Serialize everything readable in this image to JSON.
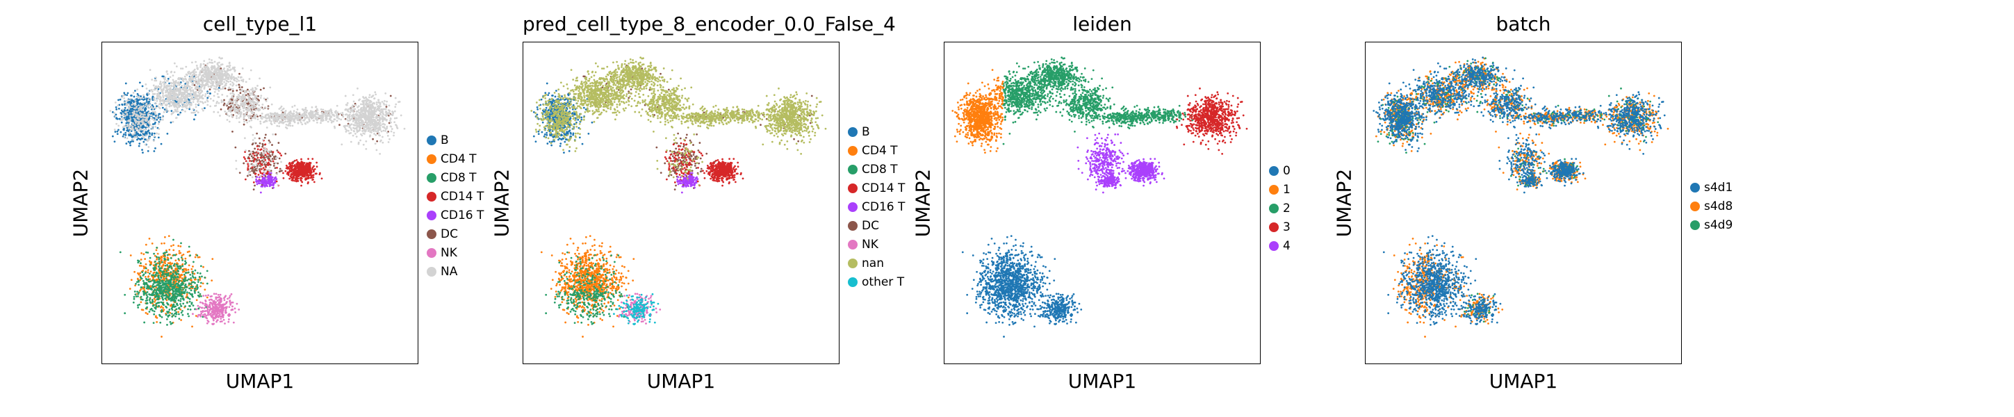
{
  "chart_data": [
    {
      "type": "scatter",
      "title": "cell_type_l1",
      "xlabel": "UMAP1",
      "ylabel": "UMAP2",
      "legend_position": "right",
      "categories": [
        "B",
        "CD4 T",
        "CD8 T",
        "CD14 T",
        "CD16 T",
        "DC",
        "NK",
        "NA"
      ],
      "colors": [
        "#1f77b4",
        "#ff7f0e",
        "#279e68",
        "#d62728",
        "#aa40fc",
        "#8c564b",
        "#e377c2",
        "#d3d3d3"
      ]
    },
    {
      "type": "scatter",
      "title": "pred_cell_type_8_encoder_0.0_False_4",
      "xlabel": "UMAP1",
      "ylabel": "UMAP2",
      "legend_position": "right",
      "categories": [
        "B",
        "CD4 T",
        "CD8 T",
        "CD14 T",
        "CD16 T",
        "DC",
        "NK",
        "nan",
        "other T"
      ],
      "colors": [
        "#1f77b4",
        "#ff7f0e",
        "#279e68",
        "#d62728",
        "#aa40fc",
        "#8c564b",
        "#e377c2",
        "#b5bd61",
        "#17becf"
      ]
    },
    {
      "type": "scatter",
      "title": "leiden",
      "xlabel": "UMAP1",
      "ylabel": "UMAP2",
      "legend_position": "right",
      "categories": [
        "0",
        "1",
        "2",
        "3",
        "4"
      ],
      "colors": [
        "#1f77b4",
        "#ff7f0e",
        "#279e68",
        "#d62728",
        "#aa40fc"
      ]
    },
    {
      "type": "scatter",
      "title": "batch",
      "xlabel": "UMAP1",
      "ylabel": "UMAP2",
      "legend_position": "right",
      "categories": [
        "s4d1",
        "s4d8",
        "s4d9"
      ],
      "colors": [
        "#1f77b4",
        "#ff7f0e",
        "#279e68"
      ]
    }
  ]
}
